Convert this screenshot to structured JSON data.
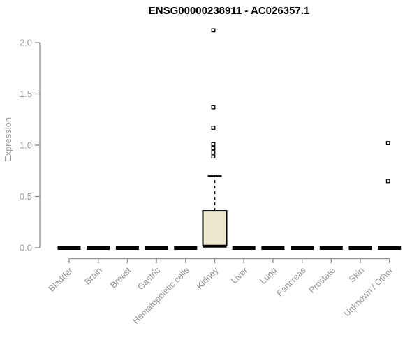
{
  "chart_data": {
    "type": "boxplot",
    "title": "ENSG00000238911 - AC026357.1",
    "xlabel": "",
    "ylabel": "Expression",
    "ylim": [
      0,
      2.0
    ],
    "yticks": [
      {
        "v": 0.0,
        "label": "0.0"
      },
      {
        "v": 0.5,
        "label": "0.5"
      },
      {
        "v": 1.0,
        "label": "1.0"
      },
      {
        "v": 1.5,
        "label": "1.5"
      },
      {
        "v": 2.0,
        "label": "2.0"
      }
    ],
    "grid": false,
    "legend": "none",
    "categories": [
      "Bladder",
      "Brain",
      "Breast",
      "Gastric",
      "Hematopoietic cells",
      "Kidney",
      "Liver",
      "Lung",
      "Pancreas",
      "Prostate",
      "Skin",
      "Unknown / Other"
    ],
    "boxes": [
      {
        "label": "Bladder",
        "min": 0,
        "q1": 0,
        "median": 0,
        "q3": 0,
        "max": 0,
        "outliers": []
      },
      {
        "label": "Brain",
        "min": 0,
        "q1": 0,
        "median": 0,
        "q3": 0,
        "max": 0,
        "outliers": []
      },
      {
        "label": "Breast",
        "min": 0,
        "q1": 0,
        "median": 0,
        "q3": 0,
        "max": 0,
        "outliers": []
      },
      {
        "label": "Gastric",
        "min": 0,
        "q1": 0,
        "median": 0,
        "q3": 0,
        "max": 0,
        "outliers": []
      },
      {
        "label": "Hematopoietic cells",
        "min": 0,
        "q1": 0,
        "median": 0,
        "q3": 0,
        "max": 0,
        "outliers": []
      },
      {
        "label": "Kidney",
        "min": 0,
        "q1": 0.02,
        "median": 0.015,
        "q3": 0.36,
        "max": 0.7,
        "outliers": [
          0.89,
          0.93,
          0.97,
          1.01,
          1.17,
          1.37,
          2.12
        ]
      },
      {
        "label": "Liver",
        "min": 0,
        "q1": 0,
        "median": 0,
        "q3": 0,
        "max": 0,
        "outliers": []
      },
      {
        "label": "Lung",
        "min": 0,
        "q1": 0,
        "median": 0,
        "q3": 0,
        "max": 0,
        "outliers": []
      },
      {
        "label": "Pancreas",
        "min": 0,
        "q1": 0,
        "median": 0,
        "q3": 0,
        "max": 0,
        "outliers": []
      },
      {
        "label": "Prostate",
        "min": 0,
        "q1": 0,
        "median": 0,
        "q3": 0,
        "max": 0,
        "outliers": []
      },
      {
        "label": "Skin",
        "min": 0,
        "q1": 0,
        "median": 0,
        "q3": 0,
        "max": 0,
        "outliers": []
      },
      {
        "label": "Unknown / Other",
        "min": 0,
        "q1": 0,
        "median": 0,
        "q3": 0,
        "max": 0,
        "outliers": [
          0.65,
          1.02
        ]
      }
    ],
    "colors": {
      "box_fill": "#ECE7CC",
      "box_stroke": "#000000",
      "flat_box": "#000000",
      "axis": "#8b8b8b",
      "text": "#9a9a9a",
      "title": "#000000",
      "outlier_fill": "#ffffff",
      "background": "#ffffff"
    }
  }
}
